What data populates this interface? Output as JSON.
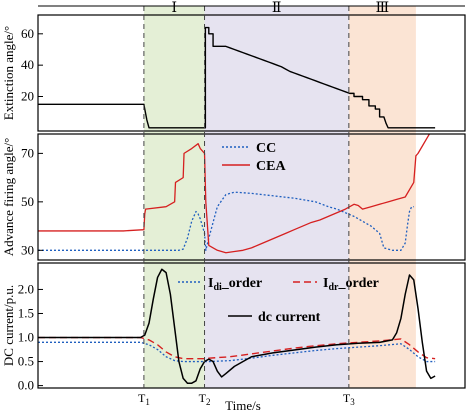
{
  "chart_data": {
    "type": "line",
    "xlabel": "Time/s",
    "time_markers": [
      {
        "label": "T1",
        "main": "T",
        "sub": "1",
        "t": 0.248
      },
      {
        "label": "T2",
        "main": "T",
        "sub": "2",
        "t": 0.39
      },
      {
        "label": "T3",
        "main": "T",
        "sub": "3",
        "t": 0.728
      }
    ],
    "regions": [
      {
        "label": "Ⅰ",
        "t_start": 0.248,
        "t_end": 0.39,
        "color": "#e4efd6"
      },
      {
        "label": "Ⅱ",
        "t_start": 0.39,
        "t_end": 0.728,
        "color": "#e6e3f0"
      },
      {
        "label": "Ⅲ",
        "t_start": 0.728,
        "t_end": 0.885,
        "color": "#fbe4d4"
      }
    ],
    "xlim": [
      0,
      1
    ],
    "subplots": [
      {
        "id": "extinction",
        "ylabel": "Extinction angle/°",
        "ylim": [
          -2,
          72
        ],
        "yticks": [
          20,
          40,
          60
        ],
        "series": [
          {
            "name": "",
            "color": "#000000",
            "dash": "solid",
            "width": 1.4,
            "x": [
              0.0,
              0.248,
              0.25,
              0.255,
              0.26,
              0.388,
              0.392,
              0.392,
              0.4,
              0.4,
              0.41,
              0.41,
              0.44,
              0.45,
              0.46,
              0.47,
              0.48,
              0.49,
              0.5,
              0.51,
              0.52,
              0.53,
              0.54,
              0.55,
              0.56,
              0.57,
              0.58,
              0.59,
              0.6,
              0.61,
              0.62,
              0.63,
              0.64,
              0.65,
              0.66,
              0.67,
              0.68,
              0.69,
              0.7,
              0.71,
              0.72,
              0.73,
              0.74,
              0.74,
              0.76,
              0.76,
              0.775,
              0.775,
              0.79,
              0.79,
              0.8,
              0.8,
              0.81,
              0.815,
              0.82,
              0.93
            ],
            "y": [
              15,
              15,
              12,
              5,
              0,
              0,
              0,
              64,
              64,
              60,
              60,
              52,
              52,
              51,
              50,
              49,
              48,
              47,
              46,
              45,
              44,
              43,
              42,
              41,
              40,
              39,
              37.5,
              36,
              35,
              34,
              33,
              32,
              31,
              30,
              29,
              28,
              27,
              26,
              25,
              24,
              23,
              22,
              22,
              20,
              20,
              18,
              18,
              14,
              14,
              12,
              12,
              7,
              7,
              3,
              0,
              0
            ]
          }
        ]
      },
      {
        "id": "firing",
        "ylabel": "Advance firing angle/°",
        "ylim": [
          26,
          78
        ],
        "yticks": [
          30,
          50,
          70
        ],
        "legend": [
          {
            "name": "CC",
            "color": "#1f5fbf",
            "dash": "2,2"
          },
          {
            "name": "CEA",
            "color": "#d62020",
            "dash": "solid"
          }
        ],
        "series": [
          {
            "name": "CC",
            "color": "#1f5fbf",
            "dash": "2,2",
            "width": 1.3,
            "x": [
              0.0,
              0.1,
              0.2,
              0.32,
              0.33,
              0.34,
              0.35,
              0.36,
              0.37,
              0.375,
              0.38,
              0.39,
              0.393,
              0.4,
              0.42,
              0.44,
              0.46,
              0.5,
              0.55,
              0.6,
              0.65,
              0.68,
              0.7,
              0.72,
              0.74,
              0.76,
              0.78,
              0.79,
              0.8,
              0.81,
              0.83,
              0.85,
              0.86,
              0.865,
              0.87,
              0.875,
              0.88
            ],
            "y": [
              30,
              30,
              30,
              30,
              30,
              30.5,
              35,
              42,
              46,
              45,
              43,
              37,
              30,
              35,
              48,
              53,
              54,
              53.5,
              52.5,
              51.5,
              50,
              48,
              47,
              45.5,
              44,
              42,
              40,
              38.5,
              37,
              31,
              30,
              30,
              33,
              40,
              46,
              48,
              48
            ]
          },
          {
            "name": "CEA",
            "color": "#d62020",
            "dash": "solid",
            "width": 1.3,
            "x": [
              0.0,
              0.1,
              0.2,
              0.248,
              0.25,
              0.252,
              0.3,
              0.32,
              0.322,
              0.34,
              0.342,
              0.36,
              0.375,
              0.38,
              0.385,
              0.39,
              0.393,
              0.4,
              0.42,
              0.44,
              0.46,
              0.48,
              0.5,
              0.52,
              0.54,
              0.56,
              0.58,
              0.6,
              0.62,
              0.64,
              0.66,
              0.68,
              0.7,
              0.72,
              0.73,
              0.74,
              0.75,
              0.76,
              0.78,
              0.8,
              0.82,
              0.84,
              0.86,
              0.88,
              0.885,
              0.89,
              0.9,
              0.91,
              0.92
            ],
            "y": [
              38,
              38,
              38,
              38.5,
              45,
              47,
              48,
              50,
              58,
              60,
              70,
              72,
              74,
              72,
              71,
              70,
              50,
              32,
              30,
              29,
              29.5,
              30,
              31,
              32.5,
              34,
              35.5,
              37,
              38.5,
              40,
              41.5,
              42.5,
              44,
              45.5,
              47,
              48,
              49,
              48.5,
              47,
              48,
              49,
              50,
              51,
              52,
              58,
              69,
              70,
              73,
              76,
              79
            ]
          }
        ]
      },
      {
        "id": "dc",
        "ylabel": "DC current/p.u.",
        "ylim": [
          -0.05,
          2.55
        ],
        "yticks": [
          0.0,
          0.5,
          1.0,
          1.5,
          2.0
        ],
        "legend": [
          {
            "name": "Idi_order",
            "main": "I",
            "sub": "di",
            "tail": "_order",
            "color": "#1f5fbf",
            "dash": "2,2"
          },
          {
            "name": "Idr_order",
            "main": "I",
            "sub": "dr",
            "tail": "_order",
            "color": "#d62020",
            "dash": "7,4"
          },
          {
            "name": "dc current",
            "main": "dc current",
            "sub": "",
            "tail": "",
            "color": "#000000",
            "dash": "solid"
          }
        ],
        "series": [
          {
            "name": "Idi_order",
            "color": "#1f5fbf",
            "dash": "2,2",
            "width": 1.3,
            "x": [
              0.0,
              0.24,
              0.26,
              0.28,
              0.3,
              0.32,
              0.34,
              0.39,
              0.4,
              0.45,
              0.5,
              0.55,
              0.6,
              0.65,
              0.7,
              0.75,
              0.8,
              0.85,
              0.87,
              0.89,
              0.91,
              0.93
            ],
            "y": [
              0.9,
              0.9,
              0.85,
              0.75,
              0.6,
              0.52,
              0.5,
              0.5,
              0.5,
              0.52,
              0.57,
              0.63,
              0.68,
              0.73,
              0.77,
              0.8,
              0.83,
              0.87,
              0.75,
              0.6,
              0.5,
              0.5
            ]
          },
          {
            "name": "Idr_order",
            "color": "#d62020",
            "dash": "7,4",
            "width": 1.4,
            "x": [
              0.0,
              0.24,
              0.26,
              0.28,
              0.3,
              0.32,
              0.34,
              0.39,
              0.4,
              0.45,
              0.5,
              0.55,
              0.6,
              0.65,
              0.7,
              0.75,
              0.8,
              0.85,
              0.87,
              0.89,
              0.91,
              0.93
            ],
            "y": [
              1.0,
              1.0,
              0.95,
              0.85,
              0.7,
              0.6,
              0.56,
              0.56,
              0.57,
              0.6,
              0.66,
              0.72,
              0.78,
              0.83,
              0.87,
              0.9,
              0.93,
              0.97,
              0.85,
              0.7,
              0.58,
              0.56
            ]
          },
          {
            "name": "dc current",
            "color": "#000000",
            "dash": "solid",
            "width": 1.5,
            "x": [
              0.0,
              0.24,
              0.25,
              0.26,
              0.27,
              0.28,
              0.29,
              0.3,
              0.31,
              0.32,
              0.33,
              0.34,
              0.35,
              0.36,
              0.37,
              0.38,
              0.39,
              0.4,
              0.41,
              0.42,
              0.43,
              0.44,
              0.46,
              0.5,
              0.55,
              0.6,
              0.65,
              0.7,
              0.75,
              0.8,
              0.83,
              0.84,
              0.85,
              0.86,
              0.87,
              0.88,
              0.89,
              0.9,
              0.91,
              0.92,
              0.93
            ],
            "y": [
              1.0,
              1.0,
              1.05,
              1.3,
              1.8,
              2.25,
              2.42,
              2.35,
              1.9,
              1.2,
              0.5,
              0.15,
              0.05,
              0.05,
              0.1,
              0.35,
              0.5,
              0.55,
              0.5,
              0.3,
              0.18,
              0.25,
              0.4,
              0.6,
              0.68,
              0.74,
              0.8,
              0.85,
              0.88,
              0.9,
              0.95,
              1.1,
              1.4,
              1.9,
              2.3,
              2.2,
              1.6,
              0.9,
              0.3,
              0.15,
              0.2
            ]
          }
        ]
      }
    ]
  }
}
